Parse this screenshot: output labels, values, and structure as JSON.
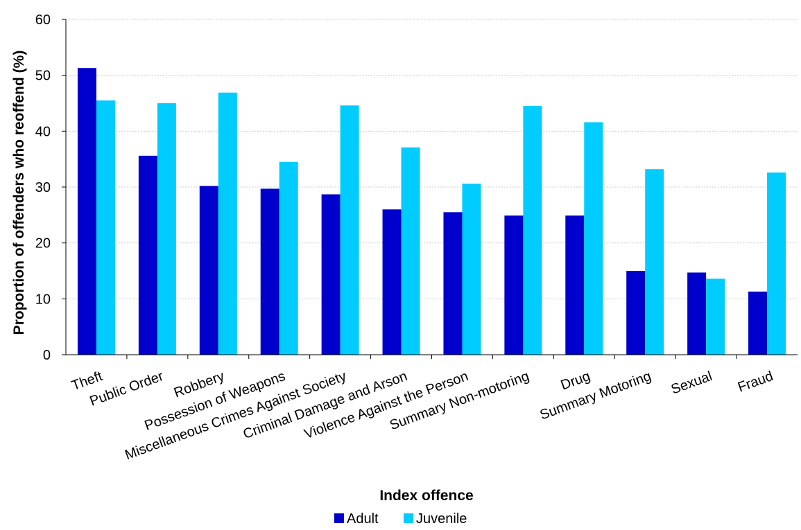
{
  "chart_data": {
    "type": "bar",
    "title": "",
    "xlabel": "Index offence",
    "ylabel": "Proportion of offenders who reoffend (%)",
    "ylim": [
      0,
      60
    ],
    "yticks": [
      0,
      10,
      20,
      30,
      40,
      50,
      60
    ],
    "grid": true,
    "legend_position": "bottom",
    "categories": [
      "Theft",
      "Public Order",
      "Robbery",
      "Possession of Weapons",
      "Miscellaneous Crimes Against Society",
      "Criminal Damage and Arson",
      "Violence Against the Person",
      "Summary Non-motoring",
      "Drug",
      "Summary Motoring",
      "Sexual",
      "Fraud"
    ],
    "series": [
      {
        "name": "Adult",
        "color": "#0000CC",
        "values": [
          51.3,
          35.6,
          30.2,
          29.7,
          28.7,
          26.0,
          25.5,
          24.9,
          24.9,
          15.0,
          14.7,
          11.3
        ]
      },
      {
        "name": "Juvenile",
        "color": "#00CCFF",
        "values": [
          45.5,
          45.0,
          46.9,
          34.5,
          44.6,
          37.1,
          30.6,
          44.5,
          41.6,
          33.2,
          13.6,
          32.6
        ]
      }
    ]
  }
}
